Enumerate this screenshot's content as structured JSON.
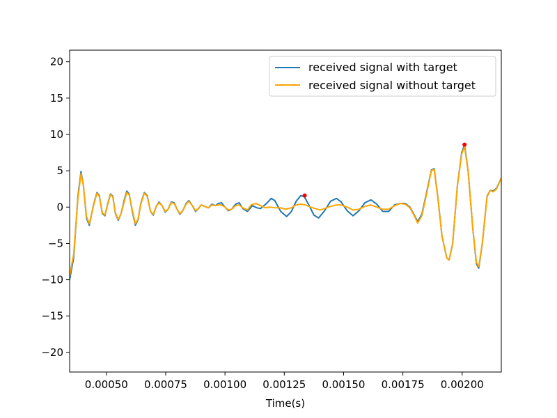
{
  "chart_data": {
    "type": "line",
    "title": "",
    "xlabel": "Time(s)",
    "ylabel": "",
    "xlim": [
      0.000345,
      0.002165
    ],
    "ylim": [
      -22.7,
      21.6
    ],
    "xticks": [
      0.0005,
      0.00075,
      0.001,
      0.00125,
      0.0015,
      0.00175,
      0.002
    ],
    "xtick_labels": [
      "0.00050",
      "0.00075",
      "0.00100",
      "0.00125",
      "0.00150",
      "0.00175",
      "0.00200"
    ],
    "yticks": [
      -20,
      -15,
      -10,
      -5,
      0,
      5,
      10,
      15,
      20
    ],
    "ytick_labels": [
      "−20",
      "−15",
      "−10",
      "−5",
      "0",
      "5",
      "10",
      "15",
      "20"
    ],
    "grid": false,
    "legend_position": "top-right",
    "series": [
      {
        "name": "received signal with target",
        "color": "#1f77b4",
        "points": [
          [
            0.000345,
            -10.0
          ],
          [
            0.000362,
            -7.0
          ],
          [
            0.00038,
            1.5
          ],
          [
            0.000393,
            4.9
          ],
          [
            0.000403,
            3.0
          ],
          [
            0.000416,
            -1.5
          ],
          [
            0.000428,
            -2.5
          ],
          [
            0.000445,
            0.2
          ],
          [
            0.00046,
            2.0
          ],
          [
            0.00047,
            1.6
          ],
          [
            0.000483,
            -0.9
          ],
          [
            0.000494,
            -1.2
          ],
          [
            0.000505,
            0.4
          ],
          [
            0.000517,
            1.8
          ],
          [
            0.000527,
            1.5
          ],
          [
            0.000538,
            -0.9
          ],
          [
            0.00055,
            -1.8
          ],
          [
            0.000562,
            -0.9
          ],
          [
            0.000574,
            0.8
          ],
          [
            0.000586,
            2.2
          ],
          [
            0.000596,
            1.8
          ],
          [
            0.00061,
            -0.7
          ],
          [
            0.000622,
            -2.5
          ],
          [
            0.000634,
            -1.7
          ],
          [
            0.000645,
            0.5
          ],
          [
            0.00066,
            2.0
          ],
          [
            0.000672,
            1.6
          ],
          [
            0.000686,
            -0.6
          ],
          [
            0.000698,
            -1.1
          ],
          [
            0.00071,
            0.1
          ],
          [
            0.000722,
            0.7
          ],
          [
            0.000735,
            0.2
          ],
          [
            0.000748,
            -0.7
          ],
          [
            0.00076,
            -0.3
          ],
          [
            0.000774,
            0.7
          ],
          [
            0.000786,
            0.6
          ],
          [
            0.000798,
            -0.3
          ],
          [
            0.00081,
            -1.0
          ],
          [
            0.000822,
            -0.5
          ],
          [
            0.000836,
            0.5
          ],
          [
            0.000848,
            0.9
          ],
          [
            0.000862,
            0.2
          ],
          [
            0.000876,
            -0.6
          ],
          [
            0.000888,
            -0.2
          ],
          [
            0.0009,
            0.3
          ],
          [
            0.000914,
            0.1
          ],
          [
            0.00093,
            -0.1
          ],
          [
            0.000945,
            0.4
          ],
          [
            0.00096,
            0.2
          ],
          [
            0.000972,
            0.5
          ],
          [
            0.000985,
            0.6
          ],
          [
            0.001,
            0.0
          ],
          [
            0.001014,
            -0.5
          ],
          [
            0.001028,
            -0.3
          ],
          [
            0.001045,
            0.4
          ],
          [
            0.00106,
            0.6
          ],
          [
            0.001075,
            -0.2
          ],
          [
            0.001095,
            -0.6
          ],
          [
            0.001115,
            0.2
          ],
          [
            0.001135,
            -0.1
          ],
          [
            0.00115,
            -0.2
          ],
          [
            0.001175,
            0.5
          ],
          [
            0.001195,
            1.2
          ],
          [
            0.00121,
            0.9
          ],
          [
            0.001235,
            -0.6
          ],
          [
            0.00126,
            -1.3
          ],
          [
            0.00128,
            -0.6
          ],
          [
            0.0013,
            0.8
          ],
          [
            0.00132,
            1.6
          ],
          [
            0.001335,
            1.4
          ],
          [
            0.001355,
            0.2
          ],
          [
            0.001375,
            -1.1
          ],
          [
            0.001395,
            -1.5
          ],
          [
            0.00142,
            -0.5
          ],
          [
            0.001445,
            0.8
          ],
          [
            0.00147,
            1.2
          ],
          [
            0.00149,
            0.7
          ],
          [
            0.001515,
            -0.5
          ],
          [
            0.00154,
            -1.2
          ],
          [
            0.001565,
            -0.5
          ],
          [
            0.00159,
            0.6
          ],
          [
            0.001615,
            1.0
          ],
          [
            0.00164,
            0.4
          ],
          [
            0.001665,
            -0.6
          ],
          [
            0.00169,
            -0.6
          ],
          [
            0.001715,
            0.3
          ],
          [
            0.00174,
            0.5
          ],
          [
            0.00176,
            0.5
          ],
          [
            0.00178,
            0.0
          ],
          [
            0.0018,
            -1.2
          ],
          [
            0.001812,
            -2.0
          ],
          [
            0.00183,
            -1.0
          ],
          [
            0.00185,
            2.0
          ],
          [
            0.00187,
            5.1
          ],
          [
            0.001882,
            5.3
          ],
          [
            0.001897,
            1.5
          ],
          [
            0.001915,
            -4.0
          ],
          [
            0.001935,
            -7.0
          ],
          [
            0.001945,
            -7.3
          ],
          [
            0.00196,
            -5.0
          ],
          [
            0.00198,
            3.0
          ],
          [
            0.001998,
            7.5
          ],
          [
            0.00201,
            8.6
          ],
          [
            0.002025,
            5.0
          ],
          [
            0.002045,
            -3.0
          ],
          [
            0.00206,
            -7.8
          ],
          [
            0.00207,
            -8.4
          ],
          [
            0.002085,
            -5.0
          ],
          [
            0.002105,
            1.5
          ],
          [
            0.002118,
            2.3
          ],
          [
            0.00213,
            2.2
          ],
          [
            0.002145,
            2.6
          ],
          [
            0.002165,
            4.0
          ]
        ]
      },
      {
        "name": "received signal without target",
        "color": "#ffa500",
        "points": [
          [
            0.000345,
            -9.5
          ],
          [
            0.000362,
            -6.5
          ],
          [
            0.00038,
            1.2
          ],
          [
            0.000393,
            4.6
          ],
          [
            0.000403,
            3.0
          ],
          [
            0.000416,
            -1.3
          ],
          [
            0.000428,
            -2.3
          ],
          [
            0.000445,
            0.1
          ],
          [
            0.00046,
            1.9
          ],
          [
            0.00047,
            1.5
          ],
          [
            0.000483,
            -0.8
          ],
          [
            0.000494,
            -1.1
          ],
          [
            0.000505,
            0.3
          ],
          [
            0.000517,
            1.7
          ],
          [
            0.000527,
            1.4
          ],
          [
            0.000538,
            -0.8
          ],
          [
            0.00055,
            -1.7
          ],
          [
            0.000562,
            -0.9
          ],
          [
            0.000574,
            0.6
          ],
          [
            0.000586,
            2.0
          ],
          [
            0.000596,
            1.7
          ],
          [
            0.00061,
            -0.5
          ],
          [
            0.000622,
            -2.3
          ],
          [
            0.000634,
            -1.6
          ],
          [
            0.000645,
            0.4
          ],
          [
            0.00066,
            1.9
          ],
          [
            0.000672,
            1.5
          ],
          [
            0.000686,
            -0.6
          ],
          [
            0.000698,
            -1.0
          ],
          [
            0.00071,
            0.1
          ],
          [
            0.000722,
            0.6
          ],
          [
            0.000735,
            0.2
          ],
          [
            0.000748,
            -0.6
          ],
          [
            0.00076,
            -0.3
          ],
          [
            0.000774,
            0.6
          ],
          [
            0.000786,
            0.5
          ],
          [
            0.000798,
            -0.3
          ],
          [
            0.00081,
            -0.9
          ],
          [
            0.000822,
            -0.5
          ],
          [
            0.000836,
            0.4
          ],
          [
            0.000848,
            0.8
          ],
          [
            0.000862,
            0.2
          ],
          [
            0.000876,
            -0.5
          ],
          [
            0.000888,
            -0.2
          ],
          [
            0.0009,
            0.3
          ],
          [
            0.000914,
            0.1
          ],
          [
            0.00093,
            -0.1
          ],
          [
            0.000945,
            0.3
          ],
          [
            0.00096,
            0.2
          ],
          [
            0.000972,
            0.3
          ],
          [
            0.000985,
            0.3
          ],
          [
            0.001,
            0.0
          ],
          [
            0.001014,
            -0.4
          ],
          [
            0.001028,
            -0.3
          ],
          [
            0.001045,
            0.2
          ],
          [
            0.00106,
            0.3
          ],
          [
            0.001075,
            -0.1
          ],
          [
            0.001095,
            -0.4
          ],
          [
            0.00111,
            0.3
          ],
          [
            0.00113,
            0.5
          ],
          [
            0.00115,
            0.2
          ],
          [
            0.00117,
            -0.1
          ],
          [
            0.00119,
            0.0
          ],
          [
            0.00121,
            -0.1
          ],
          [
            0.001235,
            -0.1
          ],
          [
            0.001255,
            -0.3
          ],
          [
            0.00128,
            -0.1
          ],
          [
            0.0013,
            0.3
          ],
          [
            0.00132,
            0.4
          ],
          [
            0.00134,
            0.3
          ],
          [
            0.00136,
            0.0
          ],
          [
            0.00138,
            -0.2
          ],
          [
            0.0014,
            -0.4
          ],
          [
            0.00142,
            -0.2
          ],
          [
            0.001445,
            0.1
          ],
          [
            0.00147,
            0.3
          ],
          [
            0.00149,
            0.3
          ],
          [
            0.001515,
            0.0
          ],
          [
            0.00154,
            -0.4
          ],
          [
            0.001565,
            -0.3
          ],
          [
            0.00159,
            0.1
          ],
          [
            0.001615,
            0.3
          ],
          [
            0.00164,
            0.0
          ],
          [
            0.001665,
            -0.3
          ],
          [
            0.00169,
            -0.3
          ],
          [
            0.001715,
            0.2
          ],
          [
            0.00174,
            0.5
          ],
          [
            0.00176,
            0.4
          ],
          [
            0.00178,
            -0.1
          ],
          [
            0.0018,
            -1.3
          ],
          [
            0.001812,
            -2.2
          ],
          [
            0.00183,
            -1.2
          ],
          [
            0.00185,
            1.8
          ],
          [
            0.00187,
            5.0
          ],
          [
            0.001882,
            5.2
          ],
          [
            0.001897,
            1.4
          ],
          [
            0.001915,
            -4.0
          ],
          [
            0.001935,
            -7.0
          ],
          [
            0.001945,
            -7.3
          ],
          [
            0.00196,
            -5.0
          ],
          [
            0.00198,
            3.0
          ],
          [
            0.001998,
            7.3
          ],
          [
            0.00201,
            8.3
          ],
          [
            0.002025,
            5.0
          ],
          [
            0.002045,
            -3.0
          ],
          [
            0.00206,
            -7.6
          ],
          [
            0.00207,
            -8.2
          ],
          [
            0.002085,
            -5.0
          ],
          [
            0.002105,
            1.4
          ],
          [
            0.002118,
            2.3
          ],
          [
            0.00213,
            2.1
          ],
          [
            0.002145,
            2.5
          ],
          [
            0.002165,
            4.0
          ]
        ]
      }
    ],
    "markers": [
      {
        "x": 0.001336,
        "y": 1.6,
        "color": "#ff0000"
      },
      {
        "x": 0.00201,
        "y": 8.6,
        "color": "#ff0000"
      }
    ]
  }
}
